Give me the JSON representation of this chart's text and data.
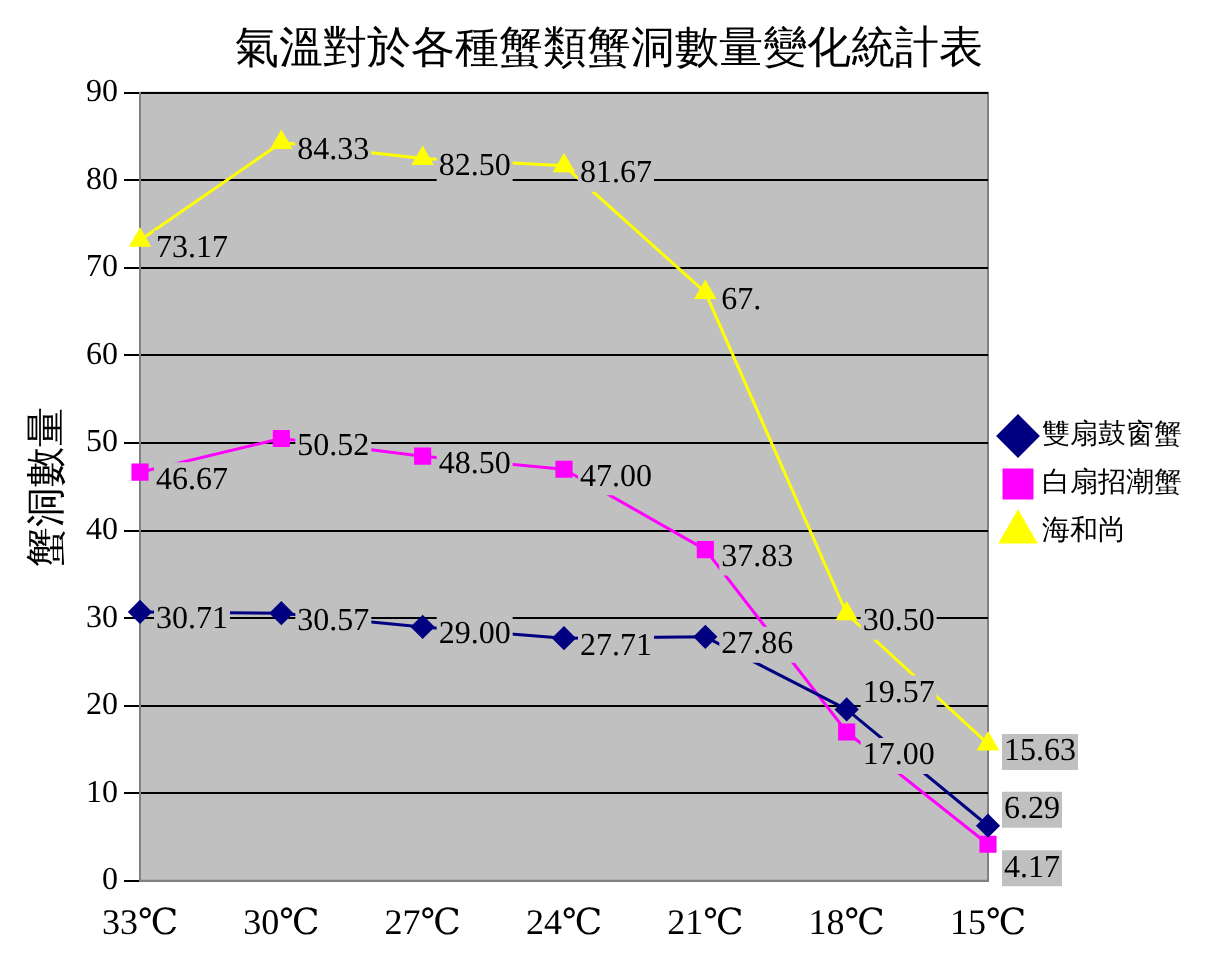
{
  "chart_data": {
    "type": "line",
    "title": "氣溫對於各種蟹類蟹洞數量變化統計表",
    "ylabel": "蟹洞數量",
    "categories": [
      "33℃",
      "30℃",
      "27℃",
      "24℃",
      "21℃",
      "18℃",
      "15℃"
    ],
    "ylim": [
      0,
      90
    ],
    "yticks": [
      0,
      10,
      20,
      30,
      40,
      50,
      60,
      70,
      80,
      90
    ],
    "grid": "y",
    "legend": "right",
    "series": [
      {
        "name": "雙扇鼓窗蟹",
        "color": "#000080",
        "marker": "diamond",
        "values": [
          30.71,
          30.57,
          29.0,
          27.71,
          27.86,
          19.57,
          6.29
        ],
        "value_labels": [
          "30.71",
          "30.57",
          "29.00",
          "27.71",
          "27.86",
          "19.57",
          "6.29"
        ]
      },
      {
        "name": "白扇招潮蟹",
        "color": "#ff00ff",
        "marker": "square",
        "values": [
          46.67,
          50.52,
          48.5,
          47.0,
          37.83,
          17.0,
          4.17
        ],
        "value_labels": [
          "46.67",
          "50.52",
          "48.50",
          "47.00",
          "37.83",
          "17.00",
          "4.17"
        ]
      },
      {
        "name": "海和尚",
        "color": "#ffff00",
        "marker": "triangle",
        "values": [
          73.17,
          84.33,
          82.5,
          81.67,
          67.2,
          30.5,
          15.63
        ],
        "value_labels": [
          "73.17",
          "84.33",
          "82.50",
          "81.67",
          "67.",
          "30.50",
          "15.63"
        ]
      }
    ]
  }
}
